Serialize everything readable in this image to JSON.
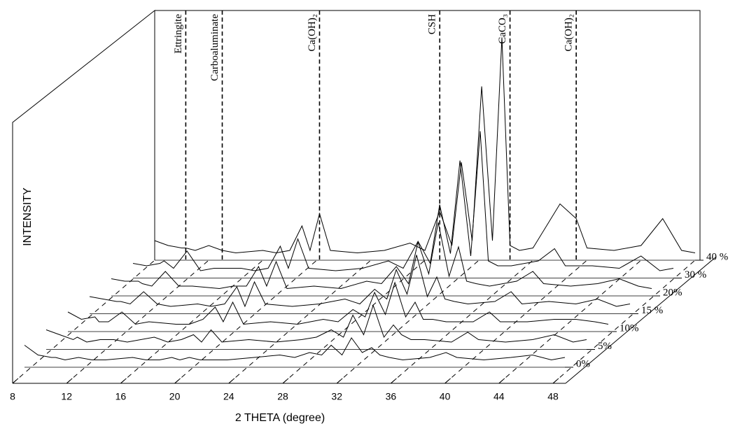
{
  "chart_data": {
    "type": "waterfall",
    "xlabel": "2 THETA (degree)",
    "ylabel": "INTENSITY",
    "xlim": [
      8,
      48
    ],
    "xticks": [
      8,
      12,
      16,
      20,
      24,
      28,
      32,
      36,
      40,
      44,
      48
    ],
    "ylim": [
      0,
      100
    ],
    "x": [
      8,
      9,
      10,
      10.3,
      11,
      12,
      13,
      14,
      16,
      17,
      18,
      18.9,
      19.5,
      20.2,
      21,
      23,
      25,
      26.9,
      28,
      29.1,
      30,
      30.7,
      31.5,
      32.2,
      33,
      33.7,
      34.3,
      35,
      36,
      38,
      39.2,
      40,
      42,
      44,
      45.6,
      47,
      48
    ],
    "series": [
      {
        "name": "0%",
        "color": "#000000",
        "values": [
          9,
          5,
          4,
          4,
          3,
          4,
          3,
          3,
          4,
          3,
          3,
          4,
          3,
          4,
          3,
          3,
          4,
          5,
          4,
          6,
          5,
          9,
          5,
          12,
          6,
          8,
          5,
          4,
          3,
          4,
          6,
          4,
          3,
          4,
          5,
          3,
          4
        ]
      },
      {
        "name": "5%",
        "color": "#000000",
        "values": [
          8,
          6,
          4,
          5,
          3,
          4,
          4,
          3,
          5,
          3,
          4,
          6,
          3,
          8,
          3,
          4,
          3,
          4,
          5,
          8,
          5,
          14,
          6,
          18,
          5,
          10,
          6,
          4,
          4,
          3,
          7,
          4,
          3,
          4,
          6,
          3,
          4
        ]
      },
      {
        "name": "10%",
        "color": "#000000",
        "values": [
          8,
          5,
          6,
          4,
          4,
          8,
          3,
          4,
          3,
          3,
          5,
          10,
          4,
          12,
          3,
          4,
          3,
          5,
          4,
          9,
          6,
          16,
          7,
          20,
          6,
          12,
          5,
          5,
          4,
          4,
          8,
          4,
          4,
          5,
          5,
          4,
          3
        ]
      },
      {
        "name": "15 %",
        "color": "#000000",
        "values": [
          7,
          6,
          5,
          5,
          4,
          9,
          4,
          3,
          4,
          3,
          4,
          11,
          3,
          13,
          4,
          3,
          4,
          6,
          4,
          10,
          6,
          18,
          8,
          24,
          7,
          15,
          6,
          5,
          4,
          5,
          9,
          4,
          5,
          4,
          6,
          3,
          4
        ]
      },
      {
        "name": "20%",
        "color": "#000000",
        "values": [
          7,
          6,
          6,
          5,
          4,
          10,
          4,
          4,
          3,
          4,
          4,
          12,
          4,
          14,
          3,
          4,
          3,
          6,
          5,
          12,
          5,
          22,
          9,
          30,
          8,
          20,
          6,
          5,
          4,
          6,
          10,
          5,
          4,
          5,
          7,
          4,
          3
        ]
      },
      {
        "name": "30 %",
        "color": "#000000",
        "values": [
          6,
          5,
          6,
          7,
          4,
          11,
          3,
          4,
          4,
          3,
          4,
          13,
          4,
          16,
          4,
          3,
          4,
          7,
          4,
          15,
          6,
          30,
          10,
          48,
          9,
          60,
          7,
          5,
          5,
          7,
          12,
          5,
          5,
          4,
          9,
          3,
          4
        ]
      },
      {
        "name": "40 %",
        "color": "#000000",
        "values": [
          8,
          6,
          5,
          5,
          4,
          6,
          4,
          3,
          4,
          3,
          4,
          14,
          4,
          19,
          4,
          3,
          4,
          7,
          4,
          20,
          6,
          40,
          8,
          71,
          8,
          91,
          6,
          4,
          5,
          23,
          17,
          5,
          4,
          6,
          17,
          4,
          3
        ]
      }
    ],
    "annotations": [
      {
        "label": "Ettringite",
        "x": 10.3
      },
      {
        "label": "Carboaluminate",
        "x": 13
      },
      {
        "label": "Ca(OH)₂",
        "x": 20.2
      },
      {
        "label": "CSH",
        "x": 29.1
      },
      {
        "label": "CaCO₃",
        "x": 34.3
      },
      {
        "label": "Ca(OH)₂",
        "x": 39.2
      }
    ]
  }
}
